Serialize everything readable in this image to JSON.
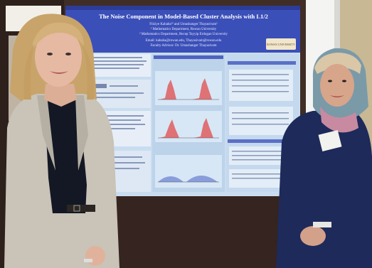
{
  "poster": {
    "title": "The Noise Component in Model-Based Cluster Analysis with L1/2",
    "authors": "Filziye Kababa¹² and Umashanger Thayasivam¹",
    "affil1": "¹ Mathematics Department, Rowan University",
    "affil2": "² Mathematics Department, Recep Tayyip Erdogan University",
    "email": "Email: kababa@rowan.edu, Thayasivam@rowan.edu",
    "advisor": "Faculty Advisor: Dr. Umashanger Thayasivam",
    "logo_text": "ROWAN UNIVERSITY"
  },
  "colors": {
    "poster_header": "#3b4fb8",
    "poster_body": "#c9ddf0",
    "wall": "#4a332b",
    "blazer": "#c9c3b8",
    "navy_suit": "#1d2a5a",
    "headscarf": "#7a9aa8"
  }
}
